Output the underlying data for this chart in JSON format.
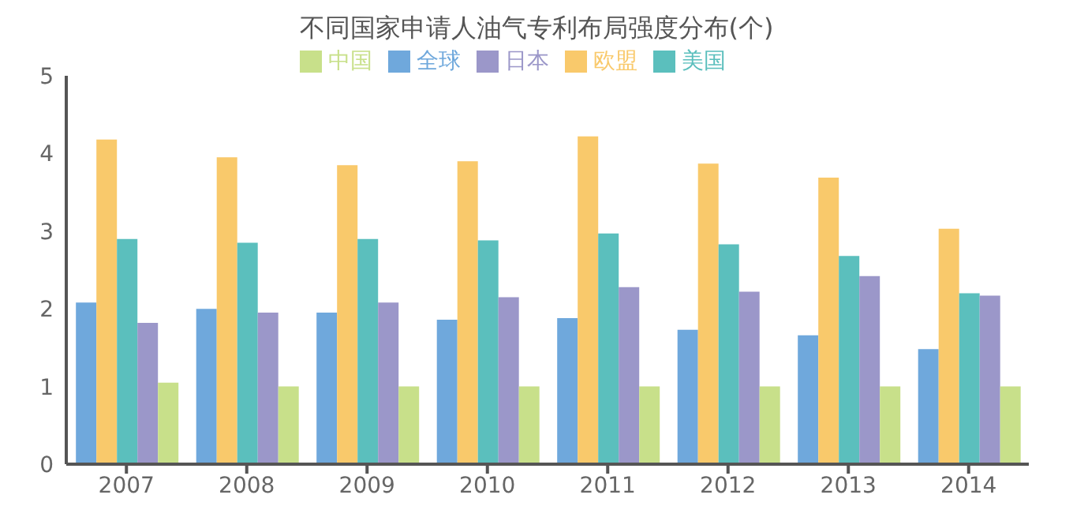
{
  "chart_data": {
    "type": "bar",
    "title": "不同国家申请人油气专利布局强度分布(个)",
    "categories": [
      "2007",
      "2008",
      "2009",
      "2010",
      "2011",
      "2012",
      "2013",
      "2014"
    ],
    "series": [
      {
        "name": "全球",
        "color": "#6fa8dc",
        "values": [
          2.08,
          2.0,
          1.95,
          1.86,
          1.88,
          1.73,
          1.66,
          1.48
        ]
      },
      {
        "name": "欧盟",
        "color": "#f9c96b",
        "values": [
          4.18,
          3.95,
          3.85,
          3.9,
          4.22,
          3.87,
          3.69,
          3.03
        ]
      },
      {
        "name": "美国",
        "color": "#5bbfbd",
        "values": [
          2.9,
          2.85,
          2.9,
          2.88,
          2.97,
          2.83,
          2.68,
          2.2
        ]
      },
      {
        "name": "日本",
        "color": "#9b97c9",
        "values": [
          1.82,
          1.95,
          2.08,
          2.15,
          2.28,
          2.22,
          2.42,
          2.17
        ]
      },
      {
        "name": "中国",
        "color": "#c8e08a",
        "values": [
          1.05,
          1.0,
          1.0,
          1.0,
          1.0,
          1.0,
          1.0,
          1.0
        ]
      }
    ],
    "ylim": [
      0,
      5
    ],
    "yticks": [
      0,
      1,
      2,
      3,
      4,
      5
    ],
    "grid": false,
    "legend": "top"
  }
}
